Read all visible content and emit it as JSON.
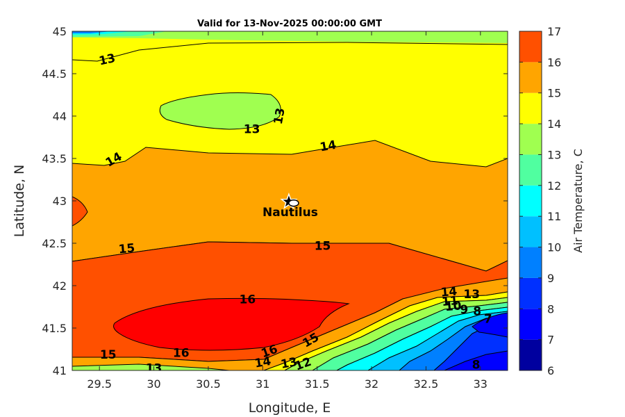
{
  "chart_data": {
    "type": "contour",
    "title": "Valid for 13-Nov-2025 00:00:00 GMT",
    "xlabel": "Longitude, E",
    "ylabel": "Latitude, N",
    "xlim": [
      29.25,
      33.25
    ],
    "ylim": [
      41,
      45
    ],
    "xticks": [
      29.5,
      30,
      30.5,
      31,
      31.5,
      32,
      32.5,
      33
    ],
    "xtick_labels": [
      "29.5",
      "30",
      "30.5",
      "31",
      "31.5",
      "32",
      "32.5",
      "33"
    ],
    "yticks": [
      41,
      41.5,
      42,
      42.5,
      43,
      43.5,
      44,
      44.5,
      45
    ],
    "ytick_labels": [
      "41",
      "41.5",
      "42",
      "42.5",
      "43",
      "43.5",
      "44",
      "44.5",
      "45"
    ],
    "colorbar": {
      "label": "Air Temperature, C",
      "min": 6,
      "max": 17,
      "ticks": [
        6,
        7,
        8,
        9,
        10,
        11,
        12,
        13,
        14,
        15,
        16,
        17
      ],
      "tick_labels": [
        "6",
        "7",
        "8",
        "9",
        "10",
        "11",
        "12",
        "13",
        "14",
        "15",
        "16",
        "17"
      ],
      "colors": [
        "#00009f",
        "#0000ff",
        "#0030ff",
        "#0080ff",
        "#00c0ff",
        "#00ffff",
        "#50ffa0",
        "#a0ff50",
        "#ffff00",
        "#ffa500",
        "#ff5000",
        "#ff0000",
        "#a00000"
      ]
    },
    "contour_labels": [
      {
        "text": "13",
        "x": 29.57,
        "y": 44.67,
        "rotation": -12
      },
      {
        "text": "13",
        "x": 30.9,
        "y": 43.85,
        "rotation": 0
      },
      {
        "text": "13",
        "x": 31.15,
        "y": 44.0,
        "rotation": -80
      },
      {
        "text": "14",
        "x": 29.63,
        "y": 43.49,
        "rotation": -30
      },
      {
        "text": "14",
        "x": 31.6,
        "y": 43.65,
        "rotation": -10
      },
      {
        "text": "15",
        "x": 29.75,
        "y": 42.44,
        "rotation": -5
      },
      {
        "text": "15",
        "x": 31.55,
        "y": 42.47,
        "rotation": 0
      },
      {
        "text": "16",
        "x": 30.86,
        "y": 41.84,
        "rotation": 0
      },
      {
        "text": "16",
        "x": 30.25,
        "y": 41.21,
        "rotation": 0
      },
      {
        "text": "16",
        "x": 31.06,
        "y": 41.23,
        "rotation": -20
      },
      {
        "text": "15",
        "x": 29.58,
        "y": 41.19,
        "rotation": 0
      },
      {
        "text": "15",
        "x": 31.44,
        "y": 41.36,
        "rotation": -30
      },
      {
        "text": "13",
        "x": 30.0,
        "y": 41.03,
        "rotation": 0
      },
      {
        "text": "14",
        "x": 31.0,
        "y": 41.1,
        "rotation": -10
      },
      {
        "text": "13",
        "x": 31.24,
        "y": 41.09,
        "rotation": -10
      },
      {
        "text": "12",
        "x": 31.37,
        "y": 41.08,
        "rotation": -20
      },
      {
        "text": "14",
        "x": 32.71,
        "y": 41.93,
        "rotation": -5
      },
      {
        "text": "13",
        "x": 32.92,
        "y": 41.9,
        "rotation": 0
      },
      {
        "text": "11",
        "x": 32.72,
        "y": 41.82,
        "rotation": -5
      },
      {
        "text": "10",
        "x": 32.75,
        "y": 41.76,
        "rotation": -5
      },
      {
        "text": "9",
        "x": 32.85,
        "y": 41.72,
        "rotation": 0
      },
      {
        "text": "8",
        "x": 32.97,
        "y": 41.7,
        "rotation": 0
      },
      {
        "text": "7",
        "x": 33.07,
        "y": 41.61,
        "rotation": 0
      },
      {
        "text": "8",
        "x": 32.96,
        "y": 41.07,
        "rotation": 0
      }
    ],
    "marker": {
      "name": "Nautilus",
      "x": 31.24,
      "y": 42.99,
      "shape": "star"
    }
  }
}
